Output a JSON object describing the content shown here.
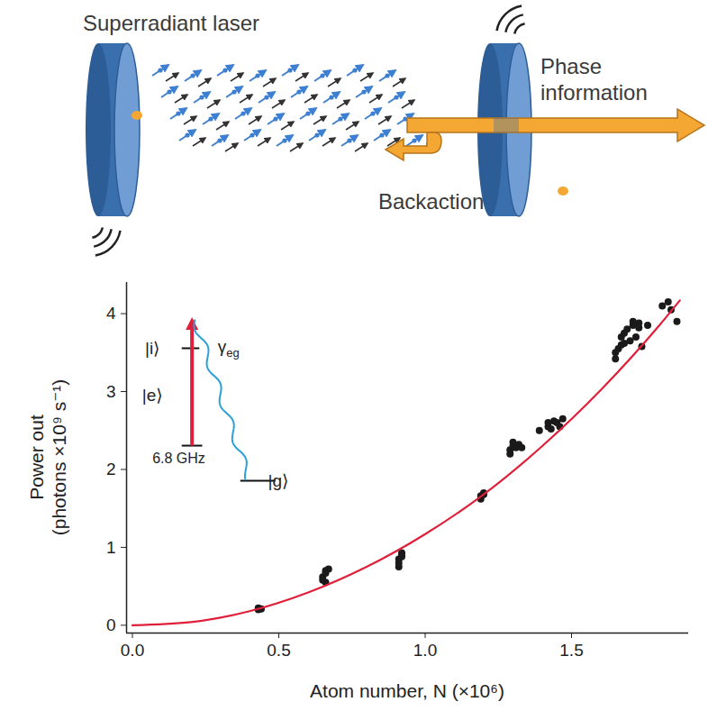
{
  "diagram": {
    "title": "Superradiant laser",
    "labels": [
      "Phase information",
      "Backaction"
    ]
  },
  "chart_data": {
    "type": "scatter",
    "xlabel": "Atom number, N (×10⁶)",
    "ylabel": "Power out (photons ×10⁹ s⁻¹)",
    "xlim": [
      -0.02,
      1.9
    ],
    "ylim": [
      -0.1,
      4.4
    ],
    "xticks": [
      {
        "value": 0,
        "label": "0.0"
      },
      {
        "value": 0.5,
        "label": "0.5"
      },
      {
        "value": 1,
        "label": "1.0"
      },
      {
        "value": 1.5,
        "label": "1.5"
      }
    ],
    "yticks": [
      0,
      1,
      2,
      3,
      4
    ],
    "grid": false,
    "series": [
      {
        "type": "scatter",
        "marker": "circle",
        "color": "#1a1a1a",
        "x": [
          0.43,
          0.43,
          0.44,
          0.65,
          0.65,
          0.66,
          0.66,
          0.66,
          0.67,
          0.91,
          0.91,
          0.91,
          0.92,
          0.92,
          0.92,
          1.19,
          1.19,
          1.2,
          1.2,
          1.29,
          1.29,
          1.3,
          1.3,
          1.31,
          1.32,
          1.33,
          1.39,
          1.42,
          1.42,
          1.43,
          1.44,
          1.45,
          1.46,
          1.47,
          1.65,
          1.65,
          1.66,
          1.67,
          1.67,
          1.68,
          1.68,
          1.69,
          1.7,
          1.71,
          1.71,
          1.72,
          1.73,
          1.73,
          1.74,
          1.76,
          1.81,
          1.83,
          1.84,
          1.86
        ],
        "values": [
          0.2,
          0.22,
          0.21,
          0.58,
          0.62,
          0.67,
          0.55,
          0.7,
          0.72,
          0.75,
          0.8,
          0.85,
          0.9,
          0.93,
          0.88,
          1.62,
          1.66,
          1.7,
          1.68,
          2.2,
          2.25,
          2.3,
          2.35,
          2.28,
          2.32,
          2.28,
          2.5,
          2.55,
          2.6,
          2.52,
          2.62,
          2.6,
          2.55,
          2.65,
          3.42,
          3.5,
          3.55,
          3.6,
          3.7,
          3.75,
          3.62,
          3.8,
          3.65,
          3.85,
          3.9,
          3.7,
          3.88,
          3.82,
          3.58,
          3.85,
          4.1,
          4.15,
          4.05,
          3.9
        ]
      },
      {
        "type": "line",
        "line_style": "solid",
        "color": "#e0203a",
        "x": [
          0,
          0.2,
          0.4,
          0.6,
          0.8,
          1.0,
          1.2,
          1.4,
          1.6,
          1.8,
          1.87
        ],
        "values": [
          0,
          0.04,
          0.18,
          0.42,
          0.75,
          1.17,
          1.68,
          2.3,
          3.02,
          3.85,
          4.17
        ]
      }
    ],
    "inset": {
      "levels": [
        "|i⟩",
        "|e⟩",
        "|g⟩"
      ],
      "decay": {
        "text": "γ",
        "subscript": "eg"
      },
      "splitting": "6.8 GHz"
    }
  }
}
